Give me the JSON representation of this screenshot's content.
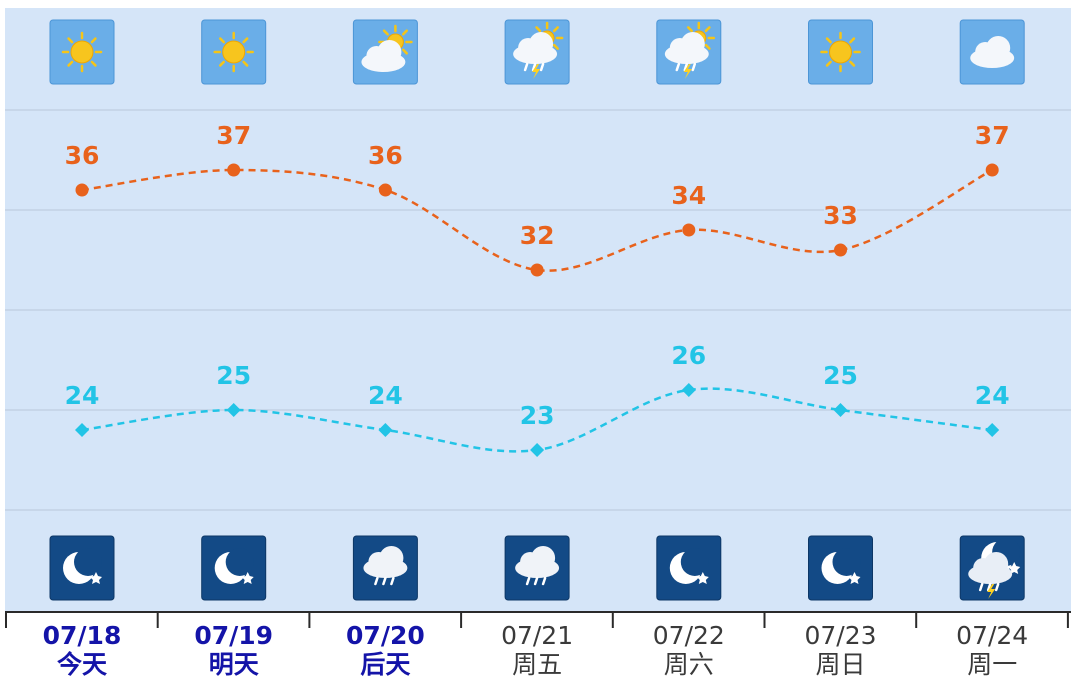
{
  "chart_data": {
    "type": "line",
    "categories": [
      "07/18",
      "07/19",
      "07/20",
      "07/21",
      "07/22",
      "07/23",
      "07/24"
    ],
    "day_labels": [
      "今天",
      "明天",
      "后天",
      "周五",
      "周六",
      "周日",
      "周一"
    ],
    "highlighted": [
      true,
      true,
      true,
      false,
      false,
      false,
      false
    ],
    "highlight_color": "#1414a8",
    "series": [
      {
        "name": "high",
        "color": "#e8621c",
        "marker": "circle",
        "values": [
          36,
          37,
          36,
          32,
          34,
          33,
          37
        ]
      },
      {
        "name": "low",
        "color": "#22c4e6",
        "marker": "diamond",
        "values": [
          24,
          25,
          24,
          23,
          26,
          25,
          24
        ]
      }
    ],
    "ylim": [
      15,
      45
    ],
    "yticks": [
      20,
      25,
      30,
      35,
      40
    ],
    "show_ytick_labels": false,
    "grid": true
  }
}
